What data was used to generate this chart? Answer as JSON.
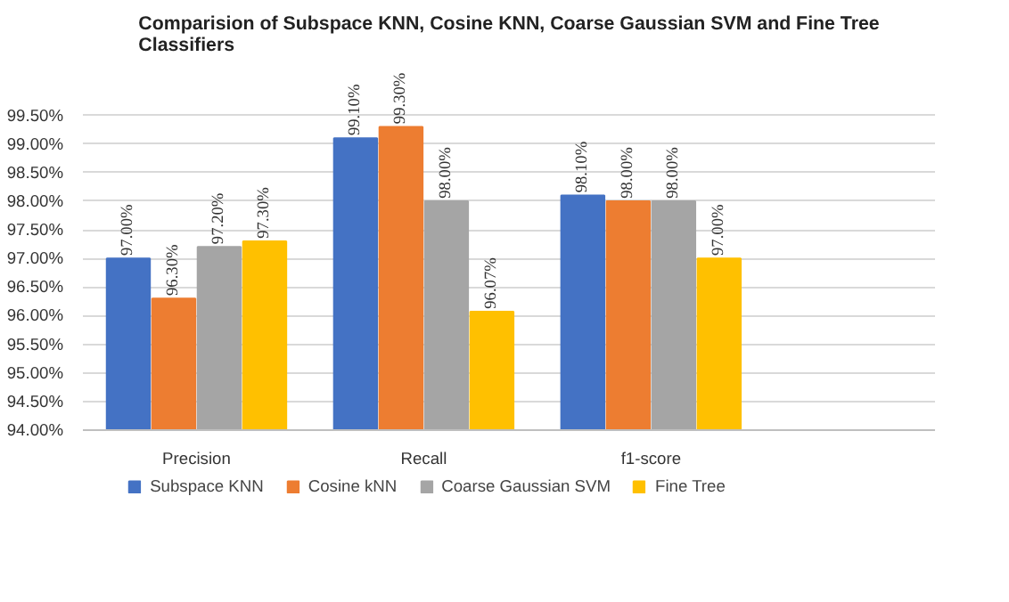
{
  "chart_data": {
    "type": "bar",
    "title": "Comparision of Subspace KNN, Cosine KNN, Coarse Gaussian SVM and Fine Tree Classifiers",
    "categories": [
      "Precision",
      "Recall",
      "f1-score"
    ],
    "series": [
      {
        "name": "Subspace KNN",
        "color": "#4472c4",
        "values": [
          97.0,
          99.1,
          98.1
        ],
        "value_labels": [
          "97.00%",
          "99.10%",
          "98.10%"
        ]
      },
      {
        "name": "Cosine kNN",
        "color": "#ed7d31",
        "values": [
          96.3,
          99.3,
          98.0
        ],
        "value_labels": [
          "96.30%",
          "99.30%",
          "98.00%"
        ]
      },
      {
        "name": "Coarse Gaussian SVM",
        "color": "#a5a5a5",
        "values": [
          97.2,
          98.0,
          98.0
        ],
        "value_labels": [
          "97.20%",
          "98.00%",
          "98.00%"
        ]
      },
      {
        "name": "Fine Tree",
        "color": "#ffc000",
        "values": [
          97.3,
          96.07,
          97.0
        ],
        "value_labels": [
          "97.30%",
          "96.07%",
          "97.00%"
        ]
      }
    ],
    "ylim": [
      94.0,
      99.5
    ],
    "yticks": [
      {
        "value": 94.0,
        "label": "94.00%"
      },
      {
        "value": 94.5,
        "label": "94.50%"
      },
      {
        "value": 95.0,
        "label": "95.00%"
      },
      {
        "value": 95.5,
        "label": "95.50%"
      },
      {
        "value": 96.0,
        "label": "96.00%"
      },
      {
        "value": 96.5,
        "label": "96.50%"
      },
      {
        "value": 97.0,
        "label": "97.00%"
      },
      {
        "value": 97.5,
        "label": "97.50%"
      },
      {
        "value": 98.0,
        "label": "98.00%"
      },
      {
        "value": 98.5,
        "label": "98.50%"
      },
      {
        "value": 99.0,
        "label": "99.00%"
      },
      {
        "value": 99.5,
        "label": "99.50%"
      }
    ],
    "grid": "y",
    "legend": "bottom"
  }
}
